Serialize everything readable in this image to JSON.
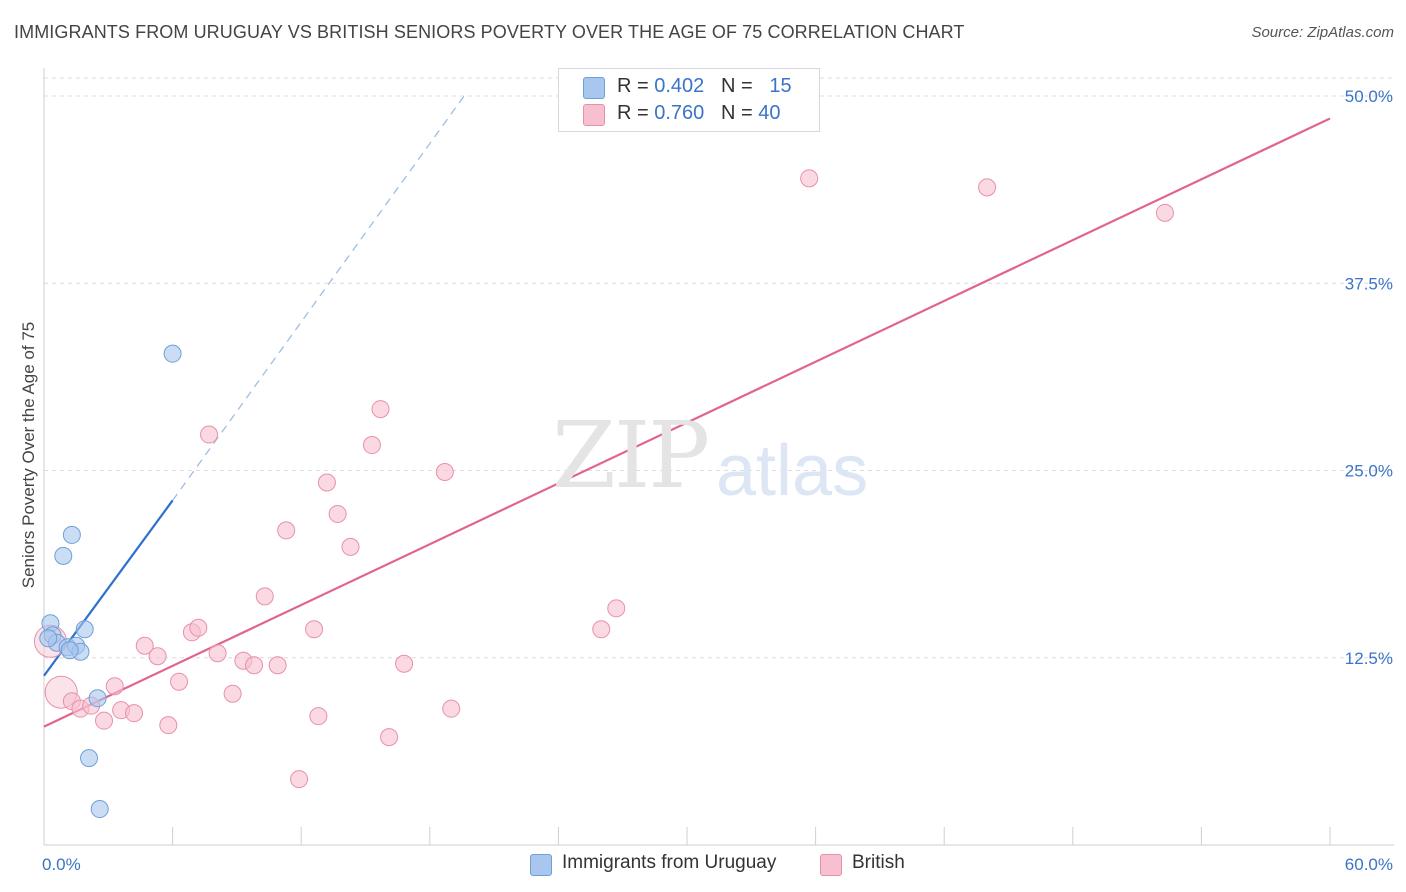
{
  "title": "IMMIGRANTS FROM URUGUAY VS BRITISH SENIORS POVERTY OVER THE AGE OF 75 CORRELATION CHART",
  "source": "Source: ZipAtlas.com",
  "watermark": {
    "zip": "ZIP",
    "atlas": "atlas"
  },
  "legend": {
    "rows": [
      {
        "r_label": "R = ",
        "r_value": "0.402",
        "n_label": "N = ",
        "n_value": "15",
        "color": "#a9c6ee",
        "stroke": "#6f9fd8"
      },
      {
        "r_label": "R = ",
        "r_value": "0.760",
        "n_label": "N = ",
        "n_value": "40",
        "color": "#f7c0d0",
        "stroke": "#e890aa"
      }
    ]
  },
  "bottom_legend": [
    {
      "label": "Immigrants from Uruguay",
      "color": "#a9c6ee",
      "stroke": "#6f9fd8"
    },
    {
      "label": "British",
      "color": "#f7c0d0",
      "stroke": "#e890aa"
    }
  ],
  "chart_data": {
    "type": "scatter",
    "title": "IMMIGRANTS FROM URUGUAY VS BRITISH SENIORS POVERTY OVER THE AGE OF 75 CORRELATION CHART",
    "xlabel": "",
    "ylabel": "Seniors Poverty Over the Age of 75",
    "xlim": [
      0,
      60
    ],
    "ylim": [
      0,
      50
    ],
    "x_tick_labels": [
      "0.0%",
      "60.0%"
    ],
    "y_ticks": [
      12.5,
      25.0,
      37.5,
      50.0
    ],
    "y_tick_labels": [
      "12.5%",
      "25.0%",
      "37.5%",
      "50.0%"
    ],
    "grid": true,
    "series": [
      {
        "name": "Immigrants from Uruguay",
        "color": "#a9c6ee",
        "stroke": "#6f9fd8",
        "line_color": "#2e6fcf",
        "points": [
          {
            "x": 0.3,
            "y": 14.8
          },
          {
            "x": 0.4,
            "y": 14.0
          },
          {
            "x": 0.6,
            "y": 13.5
          },
          {
            "x": 0.9,
            "y": 19.3
          },
          {
            "x": 1.1,
            "y": 13.2
          },
          {
            "x": 1.3,
            "y": 20.7
          },
          {
            "x": 1.5,
            "y": 13.3
          },
          {
            "x": 1.7,
            "y": 12.9
          },
          {
            "x": 1.9,
            "y": 14.4
          },
          {
            "x": 2.1,
            "y": 5.8
          },
          {
            "x": 2.5,
            "y": 9.8
          },
          {
            "x": 2.6,
            "y": 2.4
          },
          {
            "x": 6.0,
            "y": 32.8
          },
          {
            "x": 0.2,
            "y": 13.8
          },
          {
            "x": 1.2,
            "y": 13.0
          }
        ],
        "trend": {
          "x_start": 0,
          "y_start": 11.3,
          "x_solid_end": 6.0,
          "y_solid_end": 23.0,
          "x_dash_end": 19.6,
          "y_dash_end": 50.0
        }
      },
      {
        "name": "British",
        "color": "#f7c0d0",
        "stroke": "#e890aa",
        "line_color": "#e0648c",
        "points": [
          {
            "x": 0.3,
            "y": 13.6,
            "big": true
          },
          {
            "x": 0.8,
            "y": 10.2,
            "big": true
          },
          {
            "x": 1.3,
            "y": 9.6
          },
          {
            "x": 1.7,
            "y": 9.1
          },
          {
            "x": 2.2,
            "y": 9.3
          },
          {
            "x": 2.8,
            "y": 8.3
          },
          {
            "x": 3.3,
            "y": 10.6
          },
          {
            "x": 3.6,
            "y": 9.0
          },
          {
            "x": 4.2,
            "y": 8.8
          },
          {
            "x": 4.7,
            "y": 13.3
          },
          {
            "x": 5.3,
            "y": 12.6
          },
          {
            "x": 5.8,
            "y": 8.0
          },
          {
            "x": 6.3,
            "y": 10.9
          },
          {
            "x": 6.9,
            "y": 14.2
          },
          {
            "x": 7.2,
            "y": 14.5
          },
          {
            "x": 7.7,
            "y": 27.4
          },
          {
            "x": 8.1,
            "y": 12.8
          },
          {
            "x": 8.8,
            "y": 10.1
          },
          {
            "x": 9.3,
            "y": 12.3
          },
          {
            "x": 9.8,
            "y": 12.0
          },
          {
            "x": 10.3,
            "y": 16.6
          },
          {
            "x": 10.9,
            "y": 12.0
          },
          {
            "x": 11.3,
            "y": 21.0
          },
          {
            "x": 11.9,
            "y": 4.4
          },
          {
            "x": 12.6,
            "y": 14.4
          },
          {
            "x": 12.8,
            "y": 8.6
          },
          {
            "x": 13.2,
            "y": 24.2
          },
          {
            "x": 13.7,
            "y": 22.1
          },
          {
            "x": 14.3,
            "y": 19.9
          },
          {
            "x": 15.3,
            "y": 26.7
          },
          {
            "x": 15.7,
            "y": 29.1
          },
          {
            "x": 16.1,
            "y": 7.2
          },
          {
            "x": 16.8,
            "y": 12.1
          },
          {
            "x": 18.7,
            "y": 24.9
          },
          {
            "x": 19.0,
            "y": 9.1
          },
          {
            "x": 26.0,
            "y": 14.4
          },
          {
            "x": 26.7,
            "y": 15.8
          },
          {
            "x": 35.7,
            "y": 44.5
          },
          {
            "x": 44.0,
            "y": 43.9
          },
          {
            "x": 52.3,
            "y": 42.2
          }
        ],
        "trend": {
          "x_start": 0,
          "y_start": 7.9,
          "x_end": 60,
          "y_end": 48.5
        }
      }
    ]
  }
}
